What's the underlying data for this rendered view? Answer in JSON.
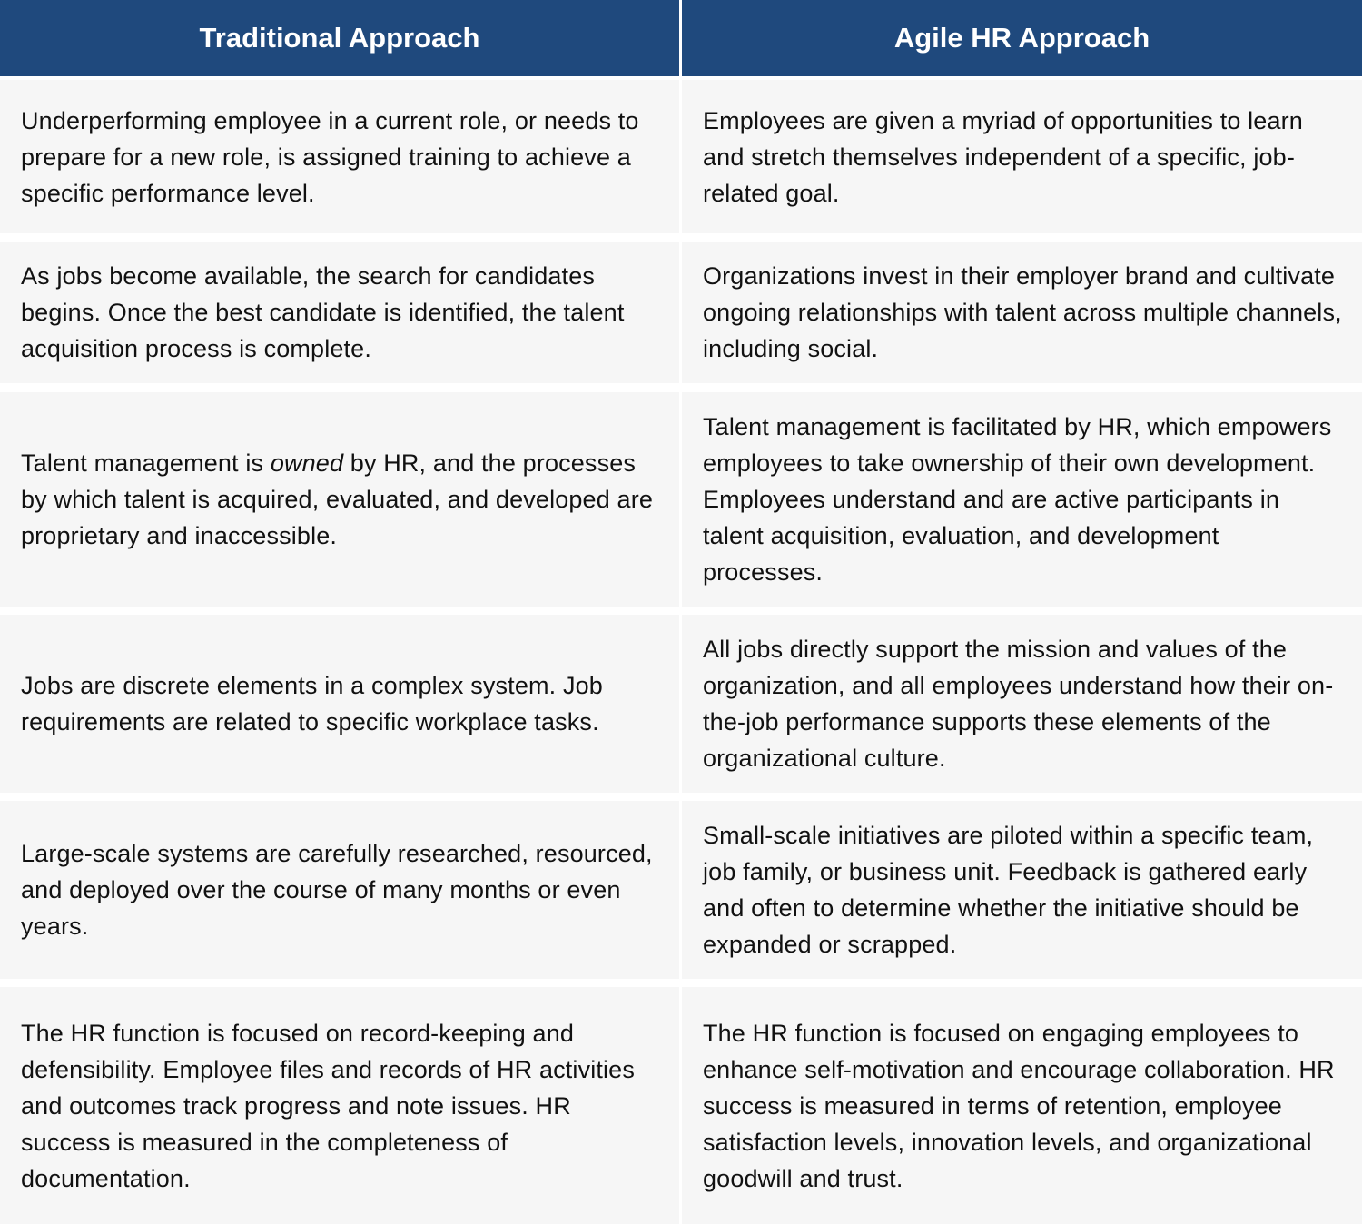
{
  "headers": {
    "traditional": "Traditional Approach",
    "agile": "Agile HR Approach"
  },
  "rows": [
    {
      "traditional": "Underperforming employee in a current role, or needs to prepare for a new role, is assigned training to achieve a specific performance level.",
      "agile": "Employees are given a myriad of opportunities to learn and stretch themselves independent of a specific, job-related goal."
    },
    {
      "traditional": "As jobs become available, the search for candidates begins. Once the best candidate is identified, the talent acquisition process is complete.",
      "agile": "Organizations invest in their employer brand and cultivate ongoing relationships with talent across multiple channels, including social."
    },
    {
      "traditional_pre": "Talent management is ",
      "traditional_emph": "owned",
      "traditional_post": " by HR, and the processes by which talent is acquired, evaluated, and developed are proprietary and inaccessible.",
      "agile": "Talent management is facilitated by HR, which empowers employees to take ownership of their own development. Employees understand and are active participants in talent acquisition, evaluation, and development processes."
    },
    {
      "traditional": "Jobs are discrete elements in a complex system. Job requirements are related to specific workplace tasks.",
      "agile": "All jobs directly support the mission and values of the organization, and all employees understand how their on-the-job performance supports these elements of the organizational culture."
    },
    {
      "traditional": "Large-scale systems are carefully researched, resourced, and deployed over the course of many months or even years.",
      "agile": "Small-scale initiatives are piloted within a specific team, job family, or business unit. Feedback is gathered early and often to determine whether the initiative should be expanded or scrapped."
    },
    {
      "traditional": "The HR function is focused on record-keeping and defensibility. Employee files and records of HR activities and outcomes track progress and note issues. HR success is measured in the completeness of documentation.",
      "agile": "The HR function is focused on engaging employees to enhance self-motivation and encourage collaboration. HR success is measured in terms of retention, employee satisfaction levels, innovation levels, and organizational goodwill and trust."
    }
  ],
  "colors": {
    "header_bg": "#1f497d",
    "header_text": "#ffffff",
    "cell_bg": "#f6f6f6",
    "cell_text": "#111111",
    "divider": "#ffffff"
  }
}
